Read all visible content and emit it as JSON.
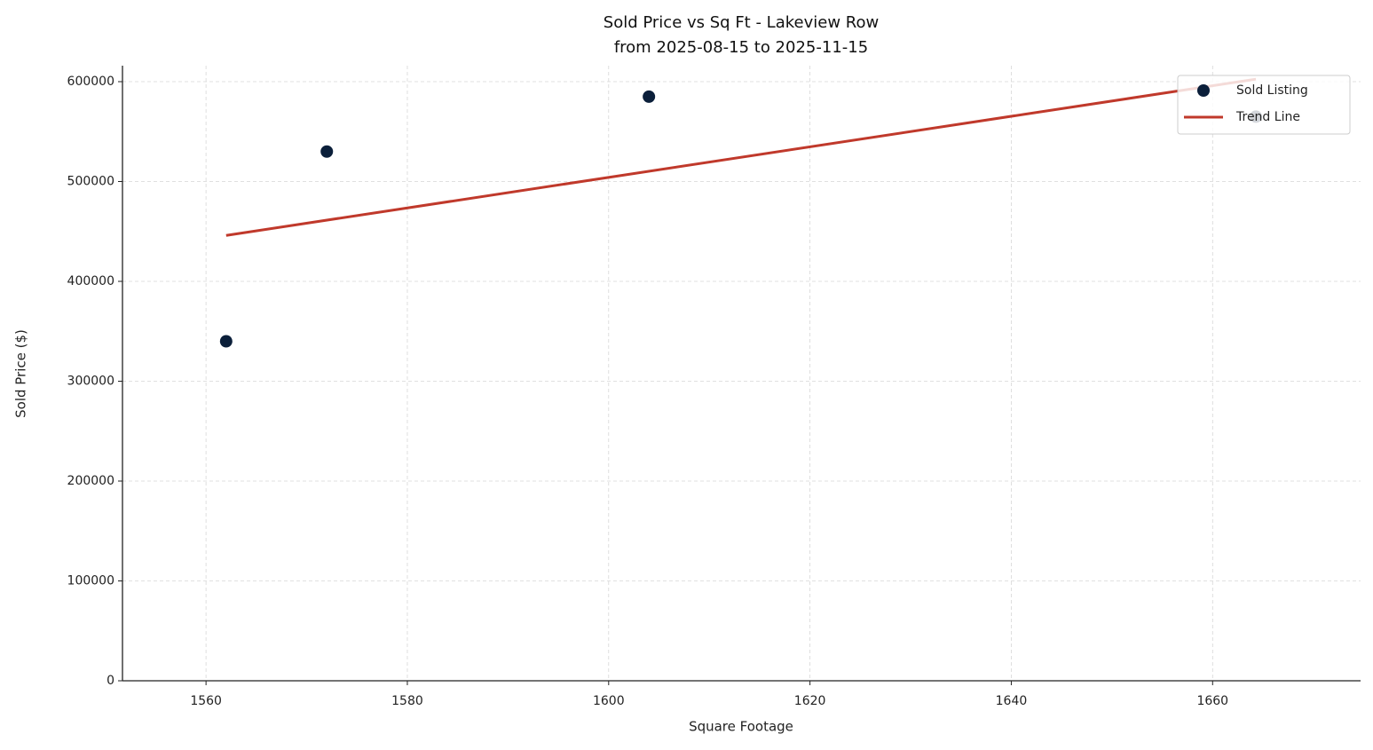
{
  "chart_data": {
    "type": "scatter",
    "title": "Sold Price vs Sq Ft - Lakeview Row",
    "subtitle": "from 2025-08-15 to 2025-11-15",
    "x_label": "Square Footage",
    "y_label": "Sold Price ($)",
    "xlim": [
      1551.7,
      1674.7
    ],
    "ylim": [
      0,
      616000
    ],
    "xticks": [
      1560,
      1580,
      1600,
      1620,
      1640,
      1660
    ],
    "yticks": [
      0,
      100000,
      200000,
      300000,
      400000,
      500000,
      600000
    ],
    "grid": true,
    "legend": "upper right",
    "series": [
      {
        "name": "Sold Listing",
        "mode": "markers",
        "color": "#0b1f3a",
        "x": [
          1562,
          1572,
          1604,
          1664.3
        ],
        "values": [
          340000,
          530000,
          585000,
          565000
        ]
      },
      {
        "name": "Trend Line",
        "mode": "line",
        "color": "#c0392b",
        "x": [
          1562,
          1664.3
        ],
        "values": [
          446000,
          602500
        ]
      }
    ]
  }
}
